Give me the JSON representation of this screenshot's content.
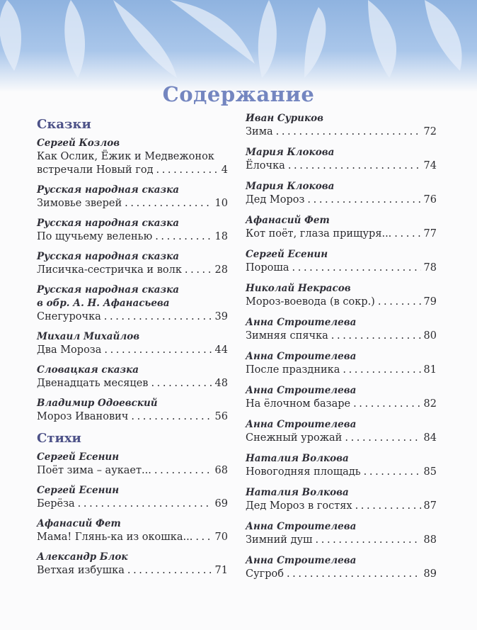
{
  "title": "Содержание",
  "left": {
    "section1": "Сказки",
    "entries1": [
      {
        "author": "Сергей Козлов",
        "title_line1": "Как Ослик, Ёжик и Медвежонок",
        "title": "встречали Новый год",
        "page": "4"
      },
      {
        "author": "Русская народная сказка",
        "title": "Зимовье зверей",
        "page": "10"
      },
      {
        "author": "Русская народная сказка",
        "title": "По щучьему веленью",
        "page": "18"
      },
      {
        "author": "Русская народная сказка",
        "title": "Лисичка-сестричка и волк",
        "page": "28"
      },
      {
        "author": "Русская народная сказка",
        "author_line2": "в обр. А. Н. Афанасьева",
        "title": "Снегурочка",
        "page": "39"
      },
      {
        "author": "Михаил Михайлов",
        "title": "Два Мороза",
        "page": "44"
      },
      {
        "author": "Словацкая сказка",
        "title": "Двенадцать месяцев",
        "page": "48"
      },
      {
        "author": "Владимир Одоевский",
        "title": "Мороз Иванович",
        "page": "56"
      }
    ],
    "section2": "Стихи",
    "entries2": [
      {
        "author": "Сергей Есенин",
        "title": "Поёт зима – аукает...",
        "page": "68"
      },
      {
        "author": "Сергей Есенин",
        "title": "Берёза",
        "page": "69"
      },
      {
        "author": "Афанасий Фет",
        "title": "Мама! Глянь-ка из окошка...",
        "page": "70"
      },
      {
        "author": "Александр Блок",
        "title": "Ветхая избушка",
        "page": "71"
      }
    ]
  },
  "right": {
    "entries": [
      {
        "author": "Иван Суриков",
        "title": "Зима",
        "page": "72"
      },
      {
        "author": "Мария Клокова",
        "title": "Ёлочка",
        "page": "74"
      },
      {
        "author": "Мария Клокова",
        "title": "Дед Мороз",
        "page": "76"
      },
      {
        "author": "Афанасий Фет",
        "title": "Кот поёт, глаза прищуря...",
        "page": "77"
      },
      {
        "author": "Сергей Есенин",
        "title": "Пороша",
        "page": "78"
      },
      {
        "author": "Николай Некрасов",
        "title": "Мороз-воевода (в сокр.)",
        "page": "79"
      },
      {
        "author": "Анна Строителева",
        "title": "Зимняя спячка",
        "page": "80"
      },
      {
        "author": "Анна Строителева",
        "title": "После праздника",
        "page": "81"
      },
      {
        "author": "Анна Строителева",
        "title": "На ёлочном базаре",
        "page": "82"
      },
      {
        "author": "Анна Строителева",
        "title": "Снежный урожай",
        "page": "84"
      },
      {
        "author": "Наталия Волкова",
        "title": "Новогодняя площадь",
        "page": "85"
      },
      {
        "author": "Наталия Волкова",
        "title": "Дед Мороз в гостях",
        "page": "87"
      },
      {
        "author": "Анна Строителева",
        "title": "Зимний душ",
        "page": "88"
      },
      {
        "author": "Анна Строителева",
        "title": "Сугроб",
        "page": "89"
      }
    ]
  }
}
